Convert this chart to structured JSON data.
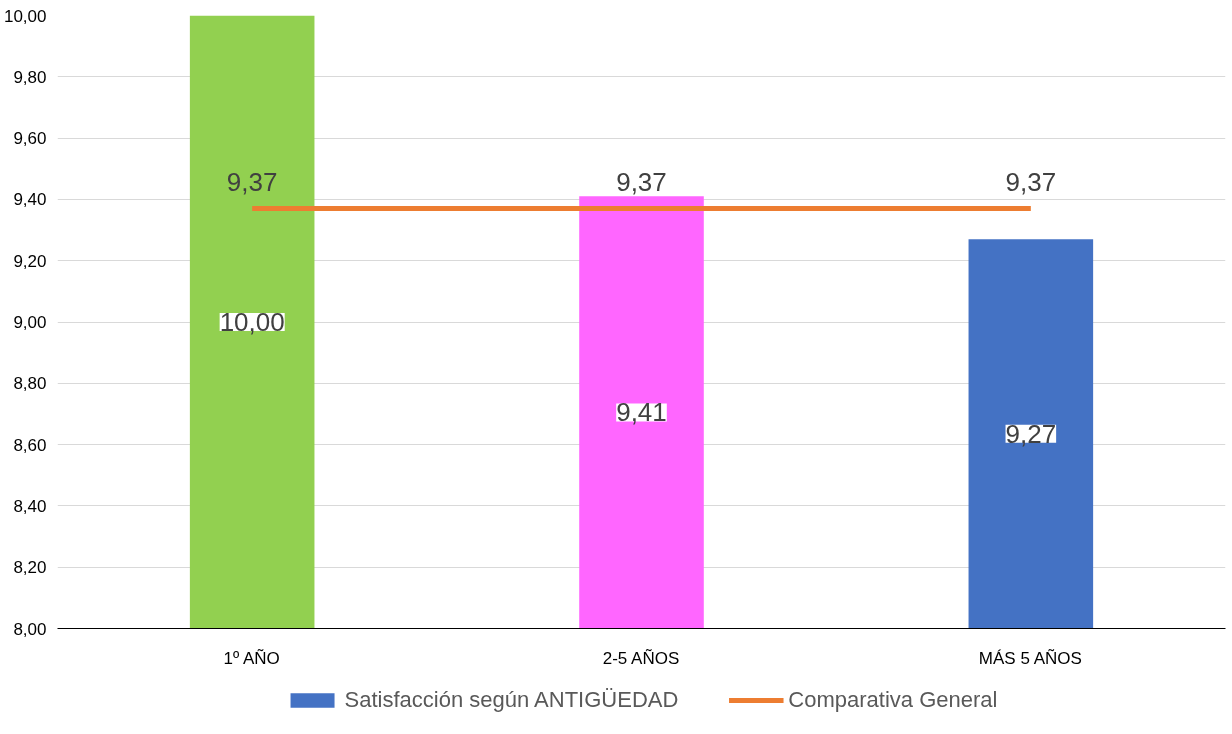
{
  "chart_data": {
    "type": "bar",
    "categories": [
      "1º AÑO",
      "2-5 AÑOS",
      "MÁS 5 AÑOS"
    ],
    "series": [
      {
        "name": "Satisfacción según ANTIGÜEDAD",
        "color": "#4472c4",
        "colors": [
          "#92d050",
          "#ff66ff",
          "#4472c4"
        ],
        "values": [
          10.0,
          9.41,
          9.27
        ],
        "value_labels": [
          "10,00",
          "9,41",
          "9,27"
        ]
      },
      {
        "name": "Comparativa General",
        "type": "line",
        "color": "#ed7d31",
        "values": [
          9.37,
          9.37,
          9.37
        ],
        "value_labels": [
          "9,37",
          "9,37",
          "9,37"
        ]
      }
    ],
    "ylim": [
      8,
      10
    ],
    "yticks": [
      {
        "value": 8,
        "label": "8,00"
      },
      {
        "value": 8.2,
        "label": "8,20"
      },
      {
        "value": 8.4,
        "label": "8,40"
      },
      {
        "value": 8.6,
        "label": "8,60"
      },
      {
        "value": 8.8,
        "label": "8,80"
      },
      {
        "value": 9,
        "label": "9,00"
      },
      {
        "value": 9.2,
        "label": "9,20"
      },
      {
        "value": 9.4,
        "label": "9,40"
      },
      {
        "value": 9.6,
        "label": "9,60"
      },
      {
        "value": 9.8,
        "label": "9,80"
      },
      {
        "value": 10,
        "label": "10,00"
      }
    ],
    "grid": "y",
    "legend": "bottom",
    "line_style": "solid",
    "marker": "none"
  }
}
